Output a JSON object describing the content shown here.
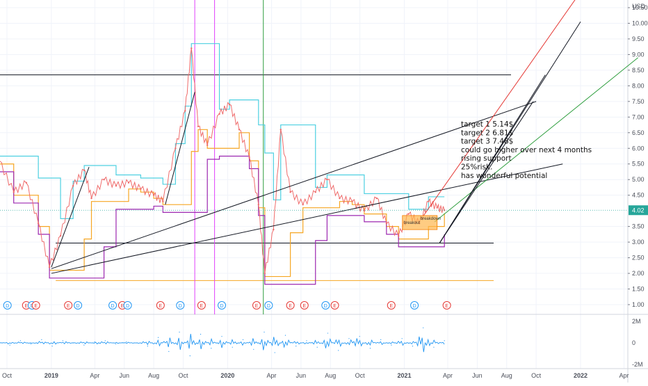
{
  "chart_data": {
    "type": "line",
    "title": "",
    "currency_label": "USD",
    "last_price": "4.02",
    "price_axis": {
      "min": 1.0,
      "max": 10.5,
      "ticks": [
        "10.50",
        "10.00",
        "9.50",
        "9.00",
        "8.50",
        "8.00",
        "7.50",
        "7.00",
        "6.50",
        "6.00",
        "5.50",
        "5.00",
        "4.50",
        "4.02",
        "3.50",
        "3.00",
        "2.50",
        "2.00",
        "1.50",
        "1.00"
      ]
    },
    "volume_axis": {
      "min": -2,
      "max": 2,
      "ticks": [
        {
          "label": "2M",
          "value": 2
        },
        {
          "label": "0",
          "value": 0
        },
        {
          "label": "-2M",
          "value": -2
        }
      ]
    },
    "time_axis": {
      "labels": [
        {
          "label": "Oct",
          "date": "2018-10-01"
        },
        {
          "label": "2019",
          "date": "2019-01-01"
        },
        {
          "label": "Apr",
          "date": "2019-04-01"
        },
        {
          "label": "Jun",
          "date": "2019-06-01"
        },
        {
          "label": "Aug",
          "date": "2019-08-01"
        },
        {
          "label": "Oct",
          "date": "2019-10-01"
        },
        {
          "label": "2020",
          "date": "2020-01-01"
        },
        {
          "label": "Apr",
          "date": "2020-04-01"
        },
        {
          "label": "Jun",
          "date": "2020-06-01"
        },
        {
          "label": "Aug",
          "date": "2020-08-01"
        },
        {
          "label": "Oct",
          "date": "2020-10-01"
        },
        {
          "label": "2021",
          "date": "2021-01-01"
        },
        {
          "label": "Apr",
          "date": "2021-04-01"
        },
        {
          "label": "Jun",
          "date": "2021-06-01"
        },
        {
          "label": "Aug",
          "date": "2021-08-01"
        },
        {
          "label": "Oct",
          "date": "2021-10-01"
        },
        {
          "label": "2022",
          "date": "2022-01-01"
        },
        {
          "label": "Apr",
          "date": "2022-04-01"
        }
      ]
    },
    "price_series": [
      {
        "date": "2018-09-15",
        "price": 5.6
      },
      {
        "date": "2018-10-15",
        "price": 4.6
      },
      {
        "date": "2018-11-10",
        "price": 4.9
      },
      {
        "date": "2018-12-05",
        "price": 3.6
      },
      {
        "date": "2018-12-28",
        "price": 2.2
      },
      {
        "date": "2019-01-20",
        "price": 3.2
      },
      {
        "date": "2019-02-15",
        "price": 4.8
      },
      {
        "date": "2019-03-10",
        "price": 5.3
      },
      {
        "date": "2019-03-25",
        "price": 4.4
      },
      {
        "date": "2019-04-20",
        "price": 5.0
      },
      {
        "date": "2019-05-15",
        "price": 4.8
      },
      {
        "date": "2019-06-10",
        "price": 4.9
      },
      {
        "date": "2019-07-05",
        "price": 4.7
      },
      {
        "date": "2019-08-01",
        "price": 4.5
      },
      {
        "date": "2019-08-20",
        "price": 4.3
      },
      {
        "date": "2019-09-15",
        "price": 6.0
      },
      {
        "date": "2019-10-05",
        "price": 7.2
      },
      {
        "date": "2019-10-18",
        "price": 9.2
      },
      {
        "date": "2019-11-01",
        "price": 6.7
      },
      {
        "date": "2019-11-20",
        "price": 6.1
      },
      {
        "date": "2019-12-15",
        "price": 7.1
      },
      {
        "date": "2020-01-05",
        "price": 7.4
      },
      {
        "date": "2020-01-25",
        "price": 6.6
      },
      {
        "date": "2020-02-15",
        "price": 5.7
      },
      {
        "date": "2020-03-05",
        "price": 4.2
      },
      {
        "date": "2020-03-18",
        "price": 2.0
      },
      {
        "date": "2020-04-05",
        "price": 3.4
      },
      {
        "date": "2020-04-20",
        "price": 6.6
      },
      {
        "date": "2020-05-10",
        "price": 4.6
      },
      {
        "date": "2020-06-05",
        "price": 4.2
      },
      {
        "date": "2020-07-01",
        "price": 4.6
      },
      {
        "date": "2020-07-25",
        "price": 5.0
      },
      {
        "date": "2020-08-20",
        "price": 4.4
      },
      {
        "date": "2020-09-15",
        "price": 4.3
      },
      {
        "date": "2020-10-10",
        "price": 4.0
      },
      {
        "date": "2020-11-05",
        "price": 4.4
      },
      {
        "date": "2020-11-25",
        "price": 3.6
      },
      {
        "date": "2020-12-20",
        "price": 3.2
      },
      {
        "date": "2021-01-10",
        "price": 3.9
      },
      {
        "date": "2021-02-01",
        "price": 3.6
      },
      {
        "date": "2021-02-20",
        "price": 4.3
      },
      {
        "date": "2021-03-10",
        "price": 4.1
      },
      {
        "date": "2021-03-25",
        "price": 4.02
      }
    ],
    "volume_series": [
      0.1,
      -0.2,
      0.2,
      -0.1,
      0.3,
      -0.3,
      0.2,
      0.0,
      -0.2,
      0.1,
      0.2,
      -0.1,
      0.1,
      0.0,
      -0.3,
      0.5,
      -0.8,
      1.0,
      -1.2,
      0.8,
      -0.5,
      0.6,
      -0.4,
      0.3,
      -0.6,
      1.0,
      -0.9,
      0.7,
      -0.3,
      0.2,
      -0.4,
      0.9,
      -0.7,
      0.4,
      0.6,
      -0.5,
      0.3,
      -0.2,
      0.4,
      -0.3,
      1.4,
      -0.4,
      0.2
    ],
    "horizontal_lines": [
      {
        "price": 8.35,
        "from": "2018-09-15",
        "to": "2021-08-10",
        "color": "#131722"
      },
      {
        "price": 2.97,
        "from": "2019-01-10",
        "to": "2021-07-05",
        "color": "#131722"
      },
      {
        "price": 1.77,
        "from": "2019-01-10",
        "to": "2021-07-05",
        "color": "#f6a623"
      }
    ],
    "vertical_lines": [
      {
        "date": "2019-10-25",
        "color": "#e040fb"
      },
      {
        "date": "2019-12-05",
        "color": "#e040fb"
      },
      {
        "date": "2020-03-15",
        "color": "#2e9e3e"
      }
    ],
    "trend_lines": [
      {
        "from": {
          "date": "2019-01-01",
          "price": 2.15
        },
        "to": {
          "date": "2021-10-01",
          "price": 7.5
        },
        "color": "#131722"
      },
      {
        "from": {
          "date": "2019-01-01",
          "price": 2.0
        },
        "to": {
          "date": "2021-11-25",
          "price": 5.5
        },
        "color": "#131722"
      },
      {
        "from": {
          "date": "2019-01-01",
          "price": 2.2
        },
        "to": {
          "date": "2019-03-20",
          "price": 5.4
        },
        "color": "#131722"
      },
      {
        "from": {
          "date": "2019-08-25",
          "price": 4.2
        },
        "to": {
          "date": "2019-10-25",
          "price": 7.8
        },
        "color": "#131722"
      },
      {
        "from": {
          "date": "2021-02-10",
          "price": 3.85
        },
        "to": {
          "date": "2022-01-10",
          "price": 11.2
        },
        "color": "#e53935"
      },
      {
        "from": {
          "date": "2021-03-05",
          "price": 3.65
        },
        "to": {
          "date": "2022-04-30",
          "price": 8.9
        },
        "color": "#2e9e3e"
      },
      {
        "from": {
          "date": "2021-03-15",
          "price": 2.97
        },
        "to": {
          "date": "2022-01-01",
          "price": 10.05
        },
        "color": "#131722"
      },
      {
        "from": {
          "date": "2021-03-15",
          "price": 2.97
        },
        "to": {
          "date": "2021-10-20",
          "price": 8.35
        },
        "color": "#131722"
      },
      {
        "from": {
          "date": "2021-03-15",
          "price": 2.97
        },
        "to": {
          "date": "2021-09-25",
          "price": 7.5
        },
        "color": "#131722"
      }
    ],
    "breakdown_box": {
      "from": "2020-12-28",
      "to": "2021-03-10",
      "price_high": 3.85,
      "price_low": 3.4,
      "labels": [
        "breakdown",
        "breakout"
      ]
    },
    "annotation_lines": [
      "target 1  5.14$",
      "target 2  6.81$",
      "target 3  7.48$",
      "could go higher over next 4 months",
      "rising support",
      "25%risk.",
      "has wonderful potential"
    ],
    "event_markers": [
      {
        "date": "2018-10-02",
        "letter": "D"
      },
      {
        "date": "2018-11-10",
        "letter": "E"
      },
      {
        "date": "2018-11-22",
        "letter": "D"
      },
      {
        "date": "2018-11-30",
        "letter": "E"
      },
      {
        "date": "2019-02-05",
        "letter": "E"
      },
      {
        "date": "2019-02-25",
        "letter": "D"
      },
      {
        "date": "2019-05-08",
        "letter": "D"
      },
      {
        "date": "2019-05-28",
        "letter": "E"
      },
      {
        "date": "2019-06-08",
        "letter": "D"
      },
      {
        "date": "2019-08-15",
        "letter": "E"
      },
      {
        "date": "2019-09-25",
        "letter": "D"
      },
      {
        "date": "2019-11-08",
        "letter": "E"
      },
      {
        "date": "2019-12-20",
        "letter": "D"
      },
      {
        "date": "2020-03-01",
        "letter": "E"
      },
      {
        "date": "2020-03-26",
        "letter": "D"
      },
      {
        "date": "2020-05-10",
        "letter": "E"
      },
      {
        "date": "2020-06-08",
        "letter": "E"
      },
      {
        "date": "2020-07-22",
        "letter": "D"
      },
      {
        "date": "2020-08-10",
        "letter": "E"
      },
      {
        "date": "2020-12-05",
        "letter": "E"
      },
      {
        "date": "2021-01-22",
        "letter": "D"
      },
      {
        "date": "2021-03-30",
        "letter": "E"
      }
    ],
    "colors": {
      "price_line": "#ef6b6b",
      "teal": "#4dd0e1",
      "orange": "#f6a623",
      "purple": "#9c27b0",
      "black": "#131722",
      "event_d": "#2196f3",
      "event_e": "#e53935",
      "volume": "#2196f3",
      "last_price_bg": "#26a69a"
    }
  }
}
